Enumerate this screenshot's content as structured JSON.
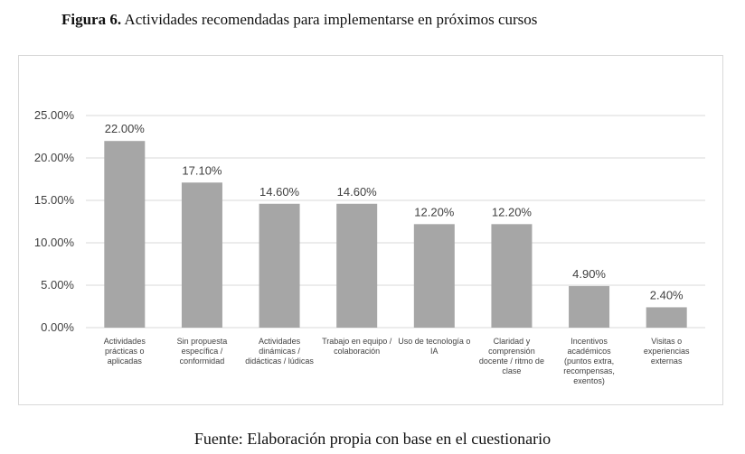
{
  "figure": {
    "label": "Figura 6.",
    "title": "Actividades recomendadas para implementarse en próximos cursos"
  },
  "source": "Fuente: Elaboración propia con base en el cuestionario",
  "chart_data": {
    "type": "bar",
    "categories": [
      [
        "Actividades",
        "prácticas o",
        "aplicadas"
      ],
      [
        "Sin propuesta",
        "específica /",
        "conformidad"
      ],
      [
        "Actividades",
        "dinámicas /",
        "didácticas / lúdicas"
      ],
      [
        "Trabajo en equipo /",
        "colaboración"
      ],
      [
        "Uso de tecnología o",
        "IA"
      ],
      [
        "Claridad y",
        "comprensión",
        "docente / ritmo de",
        "clase"
      ],
      [
        "Incentivos",
        "académicos",
        "(puntos extra,",
        "recompensas,",
        "exentos)"
      ],
      [
        "Visitas o",
        "experiencias",
        "externas"
      ]
    ],
    "values": [
      22.0,
      17.1,
      14.6,
      14.6,
      12.2,
      12.2,
      4.9,
      2.4
    ],
    "data_labels": [
      "22.00%",
      "17.10%",
      "14.60%",
      "14.60%",
      "12.20%",
      "12.20%",
      "4.90%",
      "2.40%"
    ],
    "y_ticks": [
      0,
      5,
      10,
      15,
      20,
      25
    ],
    "y_tick_labels": [
      "0.00%",
      "5.00%",
      "10.00%",
      "15.00%",
      "20.00%",
      "25.00%"
    ],
    "ylim": [
      0,
      25
    ],
    "grid": true,
    "bar_color": "#a6a6a6",
    "grid_color": "#d9d9d9"
  }
}
